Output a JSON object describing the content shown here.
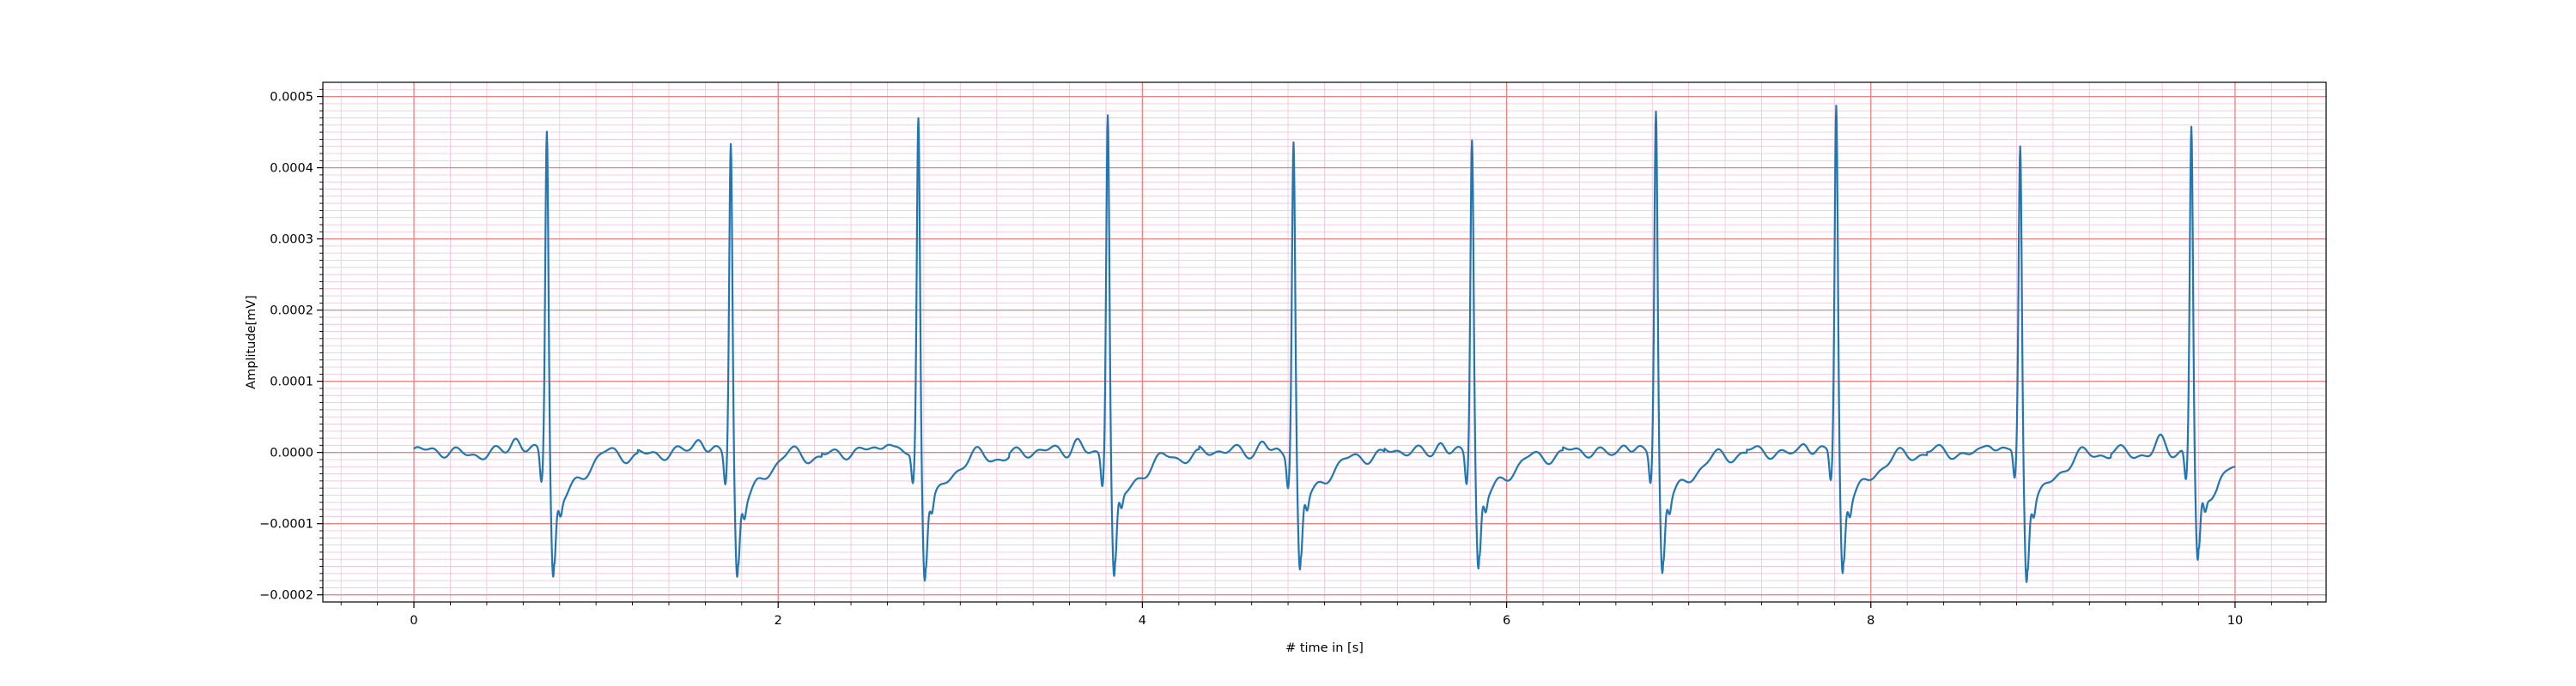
{
  "chart_data": {
    "type": "line",
    "title": "",
    "xlabel": "# time in [s]",
    "ylabel": "Amplitude[mV]",
    "xlim": [
      -0.5,
      10.5
    ],
    "ylim": [
      -0.00021,
      0.00052
    ],
    "x_ticks": [
      0,
      2,
      4,
      6,
      8,
      10
    ],
    "x_tick_labels": [
      "0",
      "2",
      "4",
      "6",
      "8",
      "10"
    ],
    "y_ticks": [
      -0.0002,
      -0.0001,
      0.0,
      0.0001,
      0.0002,
      0.0003,
      0.0004,
      0.0005
    ],
    "y_tick_labels": [
      "−0.0002",
      "−0.0001",
      "0.0000",
      "0.0001",
      "0.0002",
      "0.0003",
      "0.0004",
      "0.0005"
    ],
    "grid": {
      "major": true,
      "minor": true,
      "major_color": "#f08080",
      "minor_color": "#f4c6dc"
    },
    "line_color": "#1f77b4",
    "series": [
      {
        "name": "",
        "x_range": [
          0,
          10
        ],
        "beats": [
          {
            "t": 0.73,
            "r": 0.00046,
            "s": -0.00017
          },
          {
            "t": 1.74,
            "r": 0.00044,
            "s": -0.00017
          },
          {
            "t": 2.77,
            "r": 0.000475,
            "s": -0.00017
          },
          {
            "t": 3.81,
            "r": 0.000485,
            "s": -0.000175
          },
          {
            "t": 4.83,
            "r": 0.00044,
            "s": -0.00017
          },
          {
            "t": 5.81,
            "r": 0.000445,
            "s": -0.000165
          },
          {
            "t": 6.82,
            "r": 0.00048,
            "s": -0.00017
          },
          {
            "t": 7.81,
            "r": 0.000485,
            "s": -0.00017
          },
          {
            "t": 8.82,
            "r": 0.000425,
            "s": -0.000178
          },
          {
            "t": 9.76,
            "r": 0.000455,
            "s": -0.00016
          }
        ],
        "end_value": -2e-05
      }
    ]
  }
}
